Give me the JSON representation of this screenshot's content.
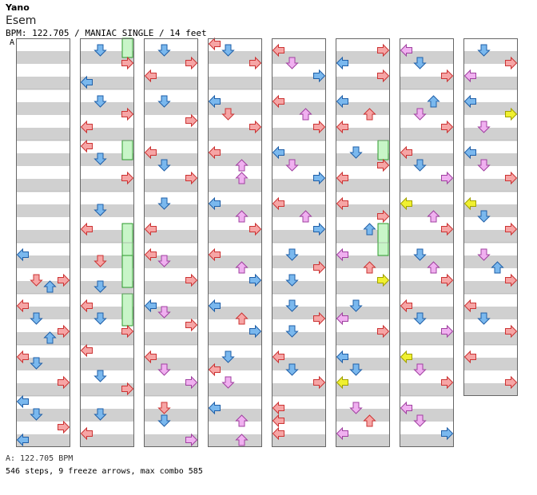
{
  "header": {
    "artist": "Yano",
    "song_title": "Esem",
    "chart_info": "BPM: 122.705 / MANIAC SINGLE / 14 feet",
    "section_marker": "A"
  },
  "footer": {
    "bpm_line": "A: 122.705 BPM",
    "stats_line": "546 steps, 9 freeze arrows, max combo 585"
  },
  "colors": {
    "quarter_fill": "#f6a5a5",
    "quarter_stroke": "#cc3333",
    "eighth_fill": "#7ab8ee",
    "eighth_stroke": "#1f5fa8",
    "sixteenth_fill": "#f0b0f0",
    "sixteenth_stroke": "#a040a0",
    "other_fill": "#f0f030",
    "other_stroke": "#a0a000",
    "freeze_fill": "#c8f5c8",
    "freeze_stroke": "#2a9a2a",
    "stripe": "#d0d0d0"
  },
  "columns": [
    {
      "measures": 8,
      "notes": [
        [
          4,
          2,
          "left",
          "eighth"
        ],
        [
          4,
          10,
          "down",
          "quarter"
        ],
        [
          4,
          10,
          "right",
          "quarter"
        ],
        [
          4,
          12,
          "up",
          "eighth"
        ],
        [
          5,
          2,
          "left",
          "quarter"
        ],
        [
          5,
          6,
          "down",
          "eighth"
        ],
        [
          5,
          10,
          "right",
          "quarter"
        ],
        [
          5,
          12,
          "up",
          "eighth"
        ],
        [
          6,
          2,
          "left",
          "quarter"
        ],
        [
          6,
          4,
          "down",
          "eighth"
        ],
        [
          6,
          10,
          "right",
          "quarter"
        ],
        [
          7,
          0,
          "left",
          "eighth"
        ],
        [
          7,
          4,
          "down",
          "eighth"
        ],
        [
          7,
          8,
          "right",
          "quarter"
        ],
        [
          7,
          12,
          "left",
          "eighth"
        ]
      ]
    },
    {
      "measures": 8,
      "notes": [
        [
          0,
          2,
          "down",
          "eighth"
        ],
        [
          0,
          6,
          "right",
          "quarter"
        ],
        [
          0,
          12,
          "left",
          "eighth"
        ],
        [
          1,
          2,
          "down",
          "eighth"
        ],
        [
          1,
          6,
          "right",
          "quarter"
        ],
        [
          1,
          10,
          "left",
          "quarter"
        ],
        [
          2,
          0,
          "left",
          "quarter"
        ],
        [
          2,
          4,
          "down",
          "eighth"
        ],
        [
          2,
          10,
          "right",
          "quarter"
        ],
        [
          3,
          4,
          "down",
          "eighth"
        ],
        [
          3,
          10,
          "left",
          "quarter"
        ],
        [
          4,
          4,
          "down",
          "quarter"
        ],
        [
          4,
          12,
          "down",
          "eighth"
        ],
        [
          5,
          2,
          "left",
          "quarter"
        ],
        [
          5,
          6,
          "down",
          "eighth"
        ],
        [
          5,
          10,
          "right",
          "quarter"
        ],
        [
          6,
          0,
          "left",
          "quarter"
        ],
        [
          6,
          8,
          "down",
          "eighth"
        ],
        [
          6,
          12,
          "right",
          "quarter"
        ],
        [
          7,
          4,
          "down",
          "eighth"
        ],
        [
          7,
          10,
          "left",
          "quarter"
        ]
      ],
      "freezes": [
        [
          0,
          0,
          0,
          4,
          "right"
        ],
        [
          2,
          0,
          2,
          4,
          "right"
        ],
        [
          3,
          10,
          4,
          2,
          "right"
        ],
        [
          4,
          4,
          4,
          12,
          "right"
        ],
        [
          5,
          0,
          5,
          8,
          "right"
        ]
      ]
    },
    {
      "measures": 8,
      "notes": [
        [
          0,
          2,
          "down",
          "eighth"
        ],
        [
          0,
          6,
          "right",
          "quarter"
        ],
        [
          0,
          10,
          "left",
          "quarter"
        ],
        [
          1,
          2,
          "down",
          "eighth"
        ],
        [
          1,
          8,
          "right",
          "quarter"
        ],
        [
          2,
          2,
          "left",
          "quarter"
        ],
        [
          2,
          6,
          "down",
          "eighth"
        ],
        [
          2,
          10,
          "right",
          "quarter"
        ],
        [
          3,
          2,
          "down",
          "eighth"
        ],
        [
          3,
          10,
          "left",
          "quarter"
        ],
        [
          4,
          2,
          "left",
          "quarter"
        ],
        [
          4,
          4,
          "down",
          "sixteenth"
        ],
        [
          4,
          10,
          "right",
          "quarter"
        ],
        [
          5,
          2,
          "left",
          "eighth"
        ],
        [
          5,
          4,
          "down",
          "sixteenth"
        ],
        [
          5,
          8,
          "right",
          "quarter"
        ],
        [
          6,
          2,
          "left",
          "quarter"
        ],
        [
          6,
          6,
          "down",
          "sixteenth"
        ],
        [
          6,
          10,
          "right",
          "sixteenth"
        ],
        [
          7,
          2,
          "down",
          "quarter"
        ],
        [
          7,
          6,
          "down",
          "eighth"
        ],
        [
          7,
          12,
          "right",
          "sixteenth"
        ]
      ]
    },
    {
      "measures": 8,
      "notes": [
        [
          0,
          0,
          "left",
          "quarter"
        ],
        [
          0,
          2,
          "down",
          "eighth"
        ],
        [
          0,
          6,
          "right",
          "quarter"
        ],
        [
          1,
          2,
          "left",
          "eighth"
        ],
        [
          1,
          6,
          "down",
          "quarter"
        ],
        [
          1,
          10,
          "right",
          "quarter"
        ],
        [
          2,
          2,
          "left",
          "quarter"
        ],
        [
          2,
          6,
          "up",
          "sixteenth"
        ],
        [
          2,
          10,
          "up",
          "sixteenth"
        ],
        [
          3,
          2,
          "left",
          "eighth"
        ],
        [
          3,
          6,
          "up",
          "sixteenth"
        ],
        [
          3,
          10,
          "right",
          "quarter"
        ],
        [
          4,
          2,
          "left",
          "quarter"
        ],
        [
          4,
          6,
          "up",
          "sixteenth"
        ],
        [
          4,
          10,
          "right",
          "eighth"
        ],
        [
          5,
          2,
          "left",
          "eighth"
        ],
        [
          5,
          6,
          "up",
          "quarter"
        ],
        [
          5,
          10,
          "right",
          "eighth"
        ],
        [
          6,
          2,
          "down",
          "eighth"
        ],
        [
          6,
          6,
          "left",
          "quarter"
        ],
        [
          6,
          10,
          "down",
          "sixteenth"
        ],
        [
          7,
          2,
          "left",
          "eighth"
        ],
        [
          7,
          6,
          "up",
          "sixteenth"
        ],
        [
          7,
          12,
          "up",
          "sixteenth"
        ]
      ]
    },
    {
      "measures": 8,
      "notes": [
        [
          0,
          2,
          "left",
          "quarter"
        ],
        [
          0,
          6,
          "down",
          "sixteenth"
        ],
        [
          0,
          10,
          "right",
          "eighth"
        ],
        [
          1,
          2,
          "left",
          "quarter"
        ],
        [
          1,
          6,
          "up",
          "sixteenth"
        ],
        [
          1,
          10,
          "right",
          "quarter"
        ],
        [
          2,
          2,
          "left",
          "eighth"
        ],
        [
          2,
          6,
          "down",
          "sixteenth"
        ],
        [
          2,
          10,
          "right",
          "eighth"
        ],
        [
          3,
          2,
          "left",
          "quarter"
        ],
        [
          3,
          6,
          "up",
          "sixteenth"
        ],
        [
          3,
          10,
          "right",
          "eighth"
        ],
        [
          4,
          2,
          "down",
          "eighth"
        ],
        [
          4,
          6,
          "right",
          "quarter"
        ],
        [
          4,
          10,
          "down",
          "eighth"
        ],
        [
          5,
          2,
          "down",
          "eighth"
        ],
        [
          5,
          6,
          "right",
          "quarter"
        ],
        [
          5,
          10,
          "down",
          "eighth"
        ],
        [
          6,
          2,
          "left",
          "quarter"
        ],
        [
          6,
          6,
          "down",
          "eighth"
        ],
        [
          6,
          10,
          "right",
          "quarter"
        ],
        [
          7,
          2,
          "left",
          "quarter"
        ],
        [
          7,
          6,
          "left",
          "quarter"
        ],
        [
          7,
          10,
          "left",
          "quarter"
        ]
      ]
    },
    {
      "measures": 8,
      "notes": [
        [
          0,
          2,
          "right",
          "quarter"
        ],
        [
          0,
          6,
          "left",
          "eighth"
        ],
        [
          0,
          10,
          "right",
          "quarter"
        ],
        [
          1,
          2,
          "left",
          "eighth"
        ],
        [
          1,
          6,
          "up",
          "quarter"
        ],
        [
          1,
          10,
          "left",
          "quarter"
        ],
        [
          2,
          2,
          "down",
          "eighth"
        ],
        [
          2,
          6,
          "right",
          "quarter"
        ],
        [
          2,
          10,
          "left",
          "quarter"
        ],
        [
          3,
          2,
          "left",
          "quarter"
        ],
        [
          3,
          6,
          "right",
          "quarter"
        ],
        [
          3,
          10,
          "up",
          "eighth"
        ],
        [
          4,
          2,
          "left",
          "sixteenth"
        ],
        [
          4,
          6,
          "up",
          "quarter"
        ],
        [
          4,
          10,
          "right",
          "other"
        ],
        [
          5,
          2,
          "down",
          "eighth"
        ],
        [
          5,
          6,
          "left",
          "sixteenth"
        ],
        [
          5,
          10,
          "right",
          "quarter"
        ],
        [
          6,
          2,
          "left",
          "eighth"
        ],
        [
          6,
          6,
          "down",
          "eighth"
        ],
        [
          6,
          10,
          "left",
          "other"
        ],
        [
          7,
          2,
          "down",
          "sixteenth"
        ],
        [
          7,
          6,
          "up",
          "quarter"
        ],
        [
          7,
          10,
          "left",
          "sixteenth"
        ]
      ],
      "freezes": [
        [
          2,
          0,
          2,
          4,
          "right"
        ],
        [
          3,
          10,
          4,
          2,
          "right"
        ]
      ]
    },
    {
      "measures": 8,
      "notes": [
        [
          0,
          2,
          "left",
          "sixteenth"
        ],
        [
          0,
          6,
          "down",
          "eighth"
        ],
        [
          0,
          10,
          "right",
          "quarter"
        ],
        [
          1,
          2,
          "up",
          "eighth"
        ],
        [
          1,
          6,
          "down",
          "sixteenth"
        ],
        [
          1,
          10,
          "right",
          "quarter"
        ],
        [
          2,
          2,
          "left",
          "quarter"
        ],
        [
          2,
          6,
          "down",
          "eighth"
        ],
        [
          2,
          10,
          "right",
          "sixteenth"
        ],
        [
          3,
          2,
          "left",
          "other"
        ],
        [
          3,
          6,
          "up",
          "sixteenth"
        ],
        [
          3,
          10,
          "right",
          "quarter"
        ],
        [
          4,
          2,
          "down",
          "eighth"
        ],
        [
          4,
          6,
          "up",
          "sixteenth"
        ],
        [
          4,
          10,
          "right",
          "quarter"
        ],
        [
          5,
          2,
          "left",
          "quarter"
        ],
        [
          5,
          6,
          "down",
          "eighth"
        ],
        [
          5,
          10,
          "right",
          "sixteenth"
        ],
        [
          6,
          2,
          "left",
          "other"
        ],
        [
          6,
          6,
          "down",
          "sixteenth"
        ],
        [
          6,
          10,
          "right",
          "quarter"
        ],
        [
          7,
          2,
          "left",
          "sixteenth"
        ],
        [
          7,
          6,
          "down",
          "sixteenth"
        ],
        [
          7,
          10,
          "right",
          "eighth"
        ]
      ]
    },
    {
      "measures": 7,
      "notes": [
        [
          0,
          2,
          "down",
          "eighth"
        ],
        [
          0,
          6,
          "right",
          "quarter"
        ],
        [
          0,
          10,
          "left",
          "sixteenth"
        ],
        [
          1,
          2,
          "left",
          "eighth"
        ],
        [
          1,
          6,
          "right",
          "other"
        ],
        [
          1,
          10,
          "down",
          "sixteenth"
        ],
        [
          2,
          2,
          "left",
          "eighth"
        ],
        [
          2,
          6,
          "down",
          "sixteenth"
        ],
        [
          2,
          10,
          "right",
          "quarter"
        ],
        [
          3,
          2,
          "left",
          "other"
        ],
        [
          3,
          6,
          "down",
          "eighth"
        ],
        [
          3,
          10,
          "right",
          "quarter"
        ],
        [
          4,
          2,
          "down",
          "sixteenth"
        ],
        [
          4,
          6,
          "up",
          "eighth"
        ],
        [
          4,
          10,
          "right",
          "quarter"
        ],
        [
          5,
          2,
          "left",
          "quarter"
        ],
        [
          5,
          6,
          "down",
          "eighth"
        ],
        [
          5,
          10,
          "right",
          "quarter"
        ],
        [
          6,
          2,
          "left",
          "quarter"
        ],
        [
          6,
          10,
          "right",
          "quarter"
        ]
      ]
    }
  ]
}
